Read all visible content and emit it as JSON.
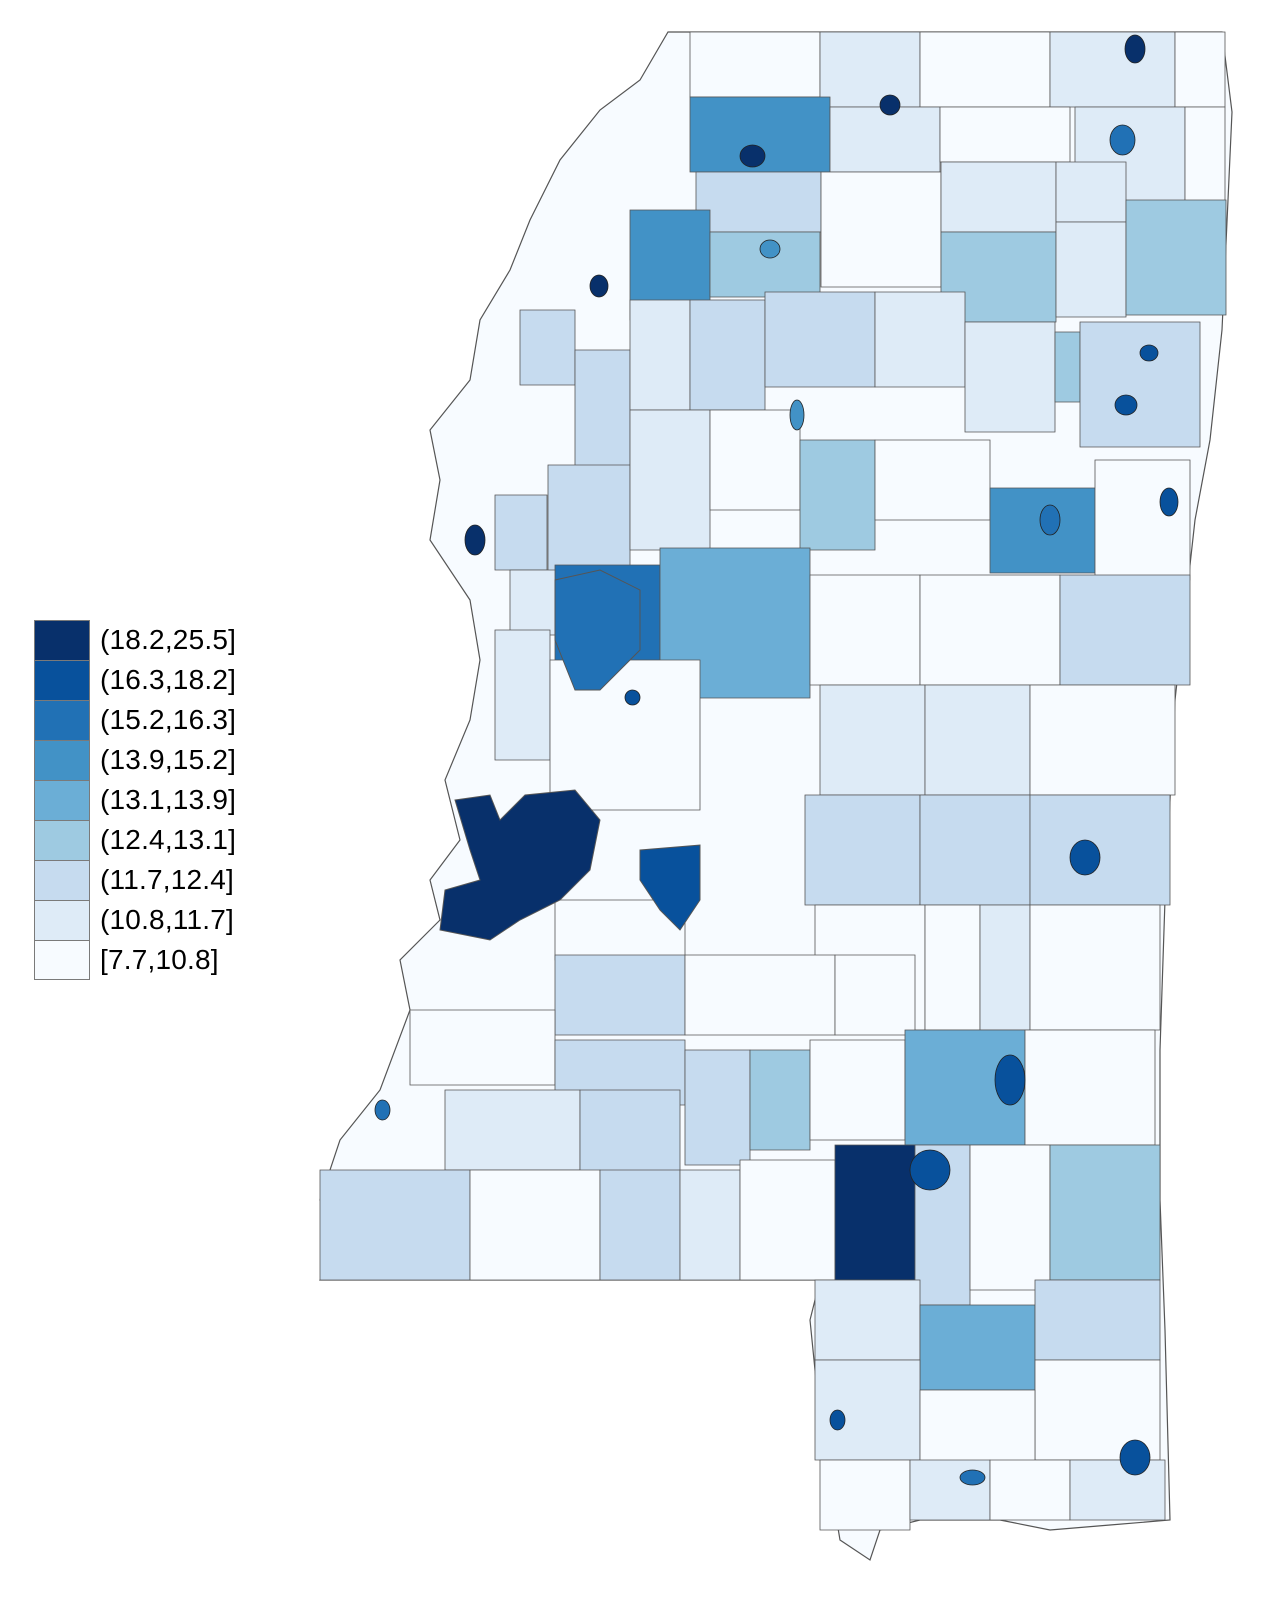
{
  "legend": {
    "classes": [
      {
        "label": "(18.2,25.5]",
        "color": "#08306b"
      },
      {
        "label": "(16.3,18.2]",
        "color": "#08519c"
      },
      {
        "label": "(15.2,16.3]",
        "color": "#2171b5"
      },
      {
        "label": "(13.9,15.2]",
        "color": "#4292c6"
      },
      {
        "label": "(13.1,13.9]",
        "color": "#6baed6"
      },
      {
        "label": "(12.4,13.1]",
        "color": "#9ecae1"
      },
      {
        "label": "(11.7,12.4]",
        "color": "#c6dbef"
      },
      {
        "label": "(10.8,11.7]",
        "color": "#deebf7"
      },
      {
        "label": "[7.7,10.8]",
        "color": "#f7fbff"
      }
    ]
  },
  "map": {
    "region": "Mississippi",
    "outline_color": "#555555",
    "highlighted_areas": [
      {
        "area": "northern Delta cluster",
        "class": "(13.9,15.2]"
      },
      {
        "area": "central Delta cluster",
        "class": "(15.2,16.3]"
      },
      {
        "area": "west-central river area",
        "class": "(18.2,25.5]"
      },
      {
        "area": "south-central county",
        "class": "(18.2,25.5]"
      },
      {
        "area": "east-central county",
        "class": "(13.1,13.9]"
      },
      {
        "area": "southeast county",
        "class": "(12.4,13.1]"
      }
    ]
  }
}
